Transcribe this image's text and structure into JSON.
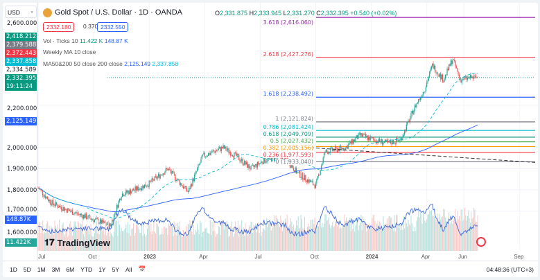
{
  "header": {
    "currency": "USD",
    "symbol": "Gold Spot / U.S. Dollar · 1D · OANDA",
    "ohlc": {
      "o": "2,331.875",
      "h": "2,333.945",
      "l": "2,331.270",
      "c": "2,332.395",
      "change": "+0.540 (+0.02%)"
    },
    "sell": "2332.180",
    "spread": "0.370",
    "buy": "2332.550"
  },
  "legend": {
    "vol": "Vol · Ticks 10",
    "vol1": "11.422 K",
    "vol2": "148.87 K",
    "weekly": "Weekly MA 10 close",
    "ma": "MA50&200 50 close 200 close",
    "ma1": "2,125.149",
    "ma2": "2,337.858"
  },
  "price_axis": {
    "labels": [
      "2,600.000",
      "2,200.000",
      "2,000.000",
      "1,900.000",
      "1,800.000",
      "1,700.000",
      "1,600.000"
    ],
    "tags": [
      {
        "t": "2,418.212",
        "c": "#089981"
      },
      {
        "t": "2,379.588",
        "c": "#787b86"
      },
      {
        "t": "2,372.443",
        "c": "#f23645"
      },
      {
        "t": "2,337.858",
        "c": "#00bcd4"
      },
      {
        "t": "2,334.589",
        "c": "#ffffff"
      },
      {
        "t": "2,332.395",
        "c": "#089981"
      }
    ],
    "countdown": "19:11:24",
    "ma_tag": "2,125.149",
    "vol_tag": "148.87K",
    "vol_tag2": "11.422K"
  },
  "fib": [
    {
      "label": "3.618 (2,616.060)",
      "price": 2616.06,
      "color": "#9c27b0"
    },
    {
      "label": "2.618 (2,427.276)",
      "price": 2427.276,
      "color": "#f23645"
    },
    {
      "label": "1.618 (2,238.492)",
      "price": 2238.492,
      "color": "#2962ff"
    },
    {
      "label": "1 (2,121.824)",
      "price": 2121.824,
      "color": "#787b86"
    },
    {
      "label": "0.786 (2,081.424)",
      "price": 2081.424,
      "color": "#00bcd4"
    },
    {
      "label": "0.618 (2,049.709)",
      "price": 2049.709,
      "color": "#089981"
    },
    {
      "label": "0.5 (2,027.432)",
      "price": 2027.432,
      "color": "#4caf50"
    },
    {
      "label": "0.382 (2,005.156)",
      "price": 2005.156,
      "color": "#ff9800"
    },
    {
      "label": "0.236 (1,977.593)",
      "price": 1977.593,
      "color": "#f23645"
    },
    {
      "label": "0 (1,933.040)",
      "price": 1933.04,
      "color": "#787b86"
    }
  ],
  "chart_data": {
    "type": "candlestick",
    "months_from_jul_2022": [
      0,
      0.7,
      1.7,
      3,
      3.9,
      4.5,
      5.2,
      6,
      7,
      7.5,
      8.1,
      8.9,
      10,
      10.7,
      11.5,
      12.2,
      13.3,
      14,
      15,
      15.5,
      16.6,
      17.4,
      18,
      18.9,
      19.6,
      20.4,
      20.9,
      21.3,
      21.9,
      22.4,
      22.8,
      23.3,
      23.8
    ],
    "close": [
      1810,
      1740,
      1700,
      1660,
      1630,
      1780,
      1800,
      1830,
      1900,
      1850,
      1790,
      1960,
      2000,
      1960,
      1900,
      1940,
      1960,
      1880,
      1820,
      1980,
      2000,
      2060,
      2040,
      2020,
      2040,
      2200,
      2280,
      2390,
      2320,
      2420,
      2320,
      2330,
      2332
    ]
  },
  "x_axis": [
    "Jul",
    "Oct",
    "2023",
    "Apr",
    "Jul",
    "Oct",
    "2024",
    "Apr",
    "Jun",
    "Sep"
  ],
  "bottom": {
    "ranges": [
      "1D",
      "5D",
      "1M",
      "3M",
      "6M",
      "YTD",
      "1Y",
      "5Y",
      "All"
    ],
    "time": "04:48:36 (UTC+3)"
  },
  "brand": "TradingView"
}
